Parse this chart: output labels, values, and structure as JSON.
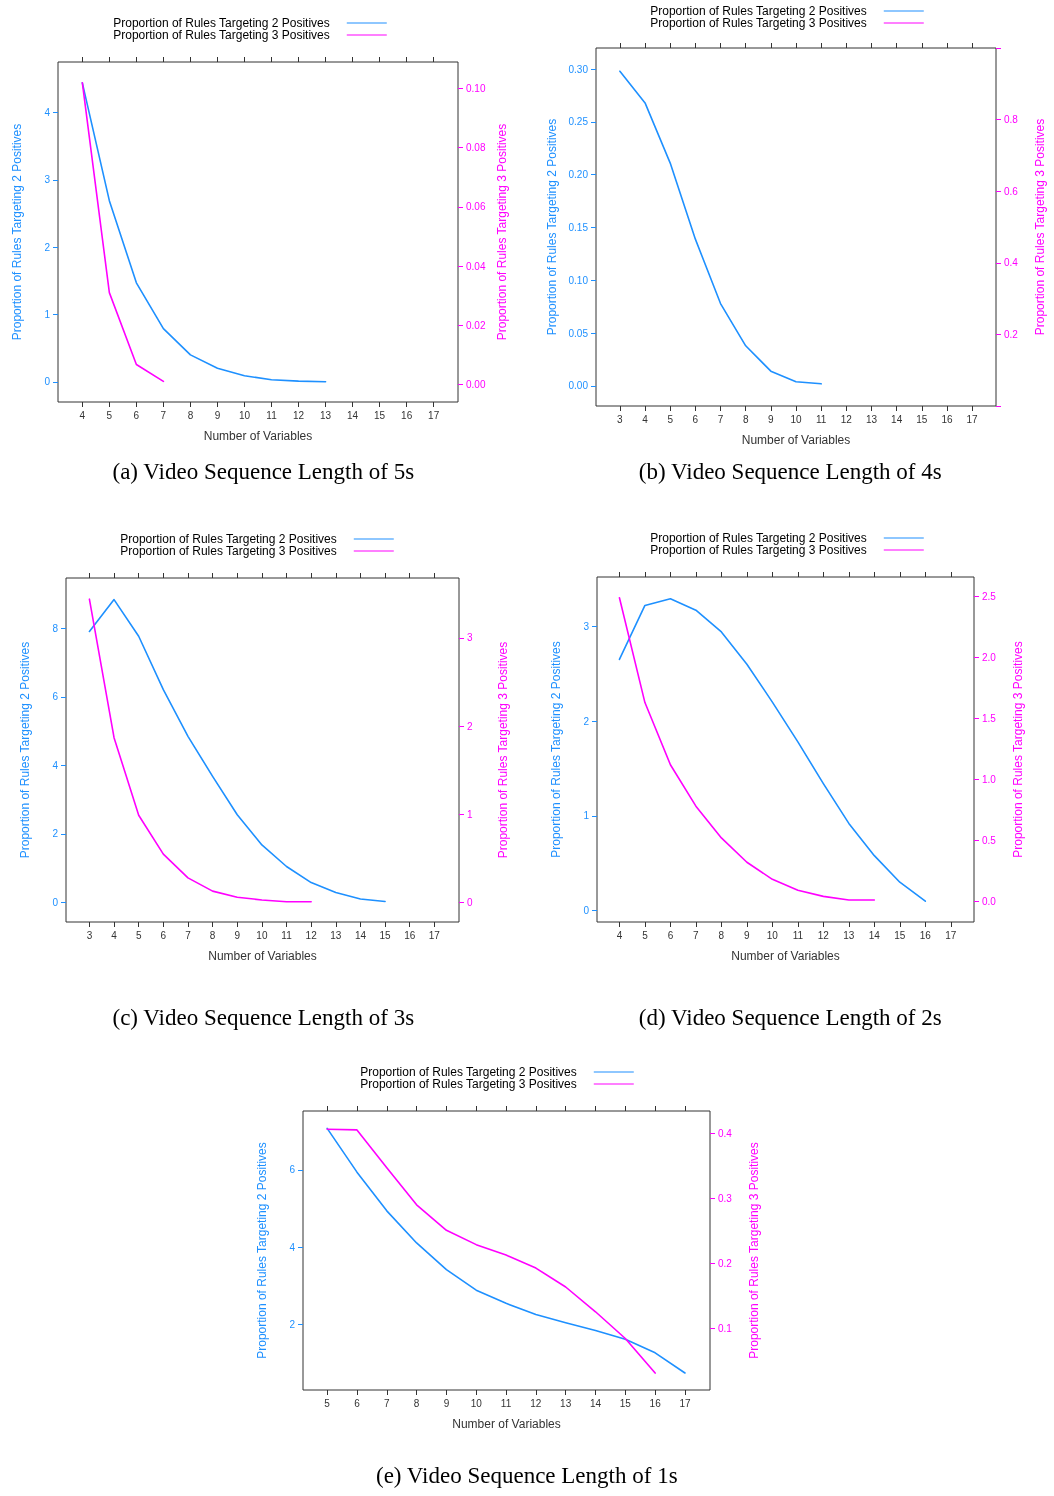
{
  "chart_data": [
    {
      "type": "line",
      "xlabel": "Number of Variables",
      "ylabel": "Proportion of Rules Targeting 2 Positives",
      "y2label": "Proportion of Rules Targeting 3 Positives",
      "annotations": [
        "(a) Video Sequence Length of 5s"
      ],
      "legend": "top",
      "grid": false,
      "x": [
        4,
        5,
        6,
        7,
        8,
        9,
        10,
        11,
        12,
        13
      ],
      "xlim": [
        3.1,
        17.9
      ],
      "xticks": [
        4,
        5,
        6,
        7,
        8,
        9,
        10,
        11,
        12,
        13,
        14,
        15,
        16,
        17
      ],
      "ylim": [
        -0.3,
        4.75
      ],
      "yticks": [
        0,
        1,
        2,
        3,
        4
      ],
      "y2lim": [
        -0.006,
        0.109
      ],
      "y2ticks": [
        {
          "value": 0,
          "label": "0.00"
        },
        {
          "value": 0.02,
          "label": "0.02"
        },
        {
          "value": 0.04,
          "label": "0.04"
        },
        {
          "value": 0.06,
          "label": "0.06"
        },
        {
          "value": 0.08,
          "label": "0.08"
        },
        {
          "value": 0.1,
          "label": "0.10"
        }
      ],
      "series": [
        {
          "name": "Proportion of Rules Targeting 2 Positives",
          "color": "#1e90ff",
          "values": [
            4.44,
            2.69,
            1.47,
            0.79,
            0.4,
            0.2,
            0.09,
            0.03,
            0.01,
            0
          ]
        },
        {
          "name": "Proportion of Rules Targeting 3 Positives",
          "color": "#ff00ff",
          "axis": "y2",
          "values": [
            0.102,
            0.031,
            0.0067,
            0.001,
            null,
            null,
            null,
            null,
            null,
            null
          ]
        }
      ]
    },
    {
      "type": "line",
      "xlabel": "Number of Variables",
      "ylabel": "Proportion of Rules Targeting 2 Positives",
      "y2label": "Proportion of Rules Targeting 3 Positives",
      "annotations": [
        "(b) Video Sequence Length of 4s"
      ],
      "legend": "top",
      "grid": false,
      "x": [
        3,
        4,
        5,
        6,
        7,
        8,
        9,
        10,
        11
      ],
      "xlim": [
        2.05,
        17.95
      ],
      "xticks": [
        3,
        4,
        5,
        6,
        7,
        8,
        9,
        10,
        11,
        12,
        13,
        14,
        15,
        16,
        17
      ],
      "ylim": [
        -0.019,
        0.32
      ],
      "yticks": [
        {
          "value": 0,
          "label": "0.00"
        },
        {
          "value": 0.05,
          "label": "0.05"
        },
        {
          "value": 0.1,
          "label": "0.10"
        },
        {
          "value": 0.15,
          "label": "0.15"
        },
        {
          "value": 0.2,
          "label": "0.20"
        },
        {
          "value": 0.25,
          "label": "0.25"
        },
        {
          "value": 0.3,
          "label": "0.30"
        }
      ],
      "y2lim": [
        0,
        1
      ],
      "y2ticks": [
        {
          "value": 0,
          "label": null
        },
        0.2,
        0.4,
        0.6,
        0.8,
        {
          "value": 1,
          "label": null
        }
      ],
      "series": [
        {
          "name": "Proportion of Rules Targeting 2 Positives",
          "color": "#1e90ff",
          "values": [
            0.298,
            0.268,
            0.211,
            0.139,
            0.078,
            0.038,
            0.014,
            0.004,
            0.002
          ]
        },
        {
          "name": "Proportion of Rules Targeting 3 Positives",
          "color": "#ff00ff",
          "axis": "y2",
          "values": [
            null,
            null,
            null,
            null,
            null,
            null,
            null,
            null,
            null
          ]
        }
      ]
    },
    {
      "type": "line",
      "xlabel": "Number of Variables",
      "ylabel": "Proportion of Rules Targeting 2 Positives",
      "y2label": "Proportion of Rules Targeting 3 Positives",
      "annotations": [
        "(c) Video Sequence Length of 3s"
      ],
      "legend": "top",
      "grid": false,
      "x": [
        3,
        4,
        5,
        6,
        7,
        8,
        9,
        10,
        11,
        12,
        13,
        14,
        15
      ],
      "xlim": [
        2.05,
        18.0
      ],
      "xticks": [
        3,
        4,
        5,
        6,
        7,
        8,
        9,
        10,
        11,
        12,
        13,
        14,
        15,
        16,
        17
      ],
      "ylim": [
        -0.57,
        9.47
      ],
      "yticks": [
        0,
        2,
        4,
        6,
        8
      ],
      "y2lim": [
        -0.22,
        3.68
      ],
      "y2ticks": [
        0,
        1,
        2,
        3
      ],
      "series": [
        {
          "name": "Proportion of Rules Targeting 2 Positives",
          "color": "#1e90ff",
          "values": [
            7.91,
            8.84,
            7.77,
            6.21,
            4.85,
            3.68,
            2.56,
            1.68,
            1.05,
            0.58,
            0.29,
            0.1,
            0.03
          ]
        },
        {
          "name": "Proportion of Rules Targeting 3 Positives",
          "color": "#ff00ff",
          "axis": "y2",
          "values": [
            3.44,
            1.87,
            0.99,
            0.55,
            0.28,
            0.13,
            0.06,
            0.03,
            0.01,
            0.01,
            null,
            null,
            null
          ]
        }
      ]
    },
    {
      "type": "line",
      "xlabel": "Number of Variables",
      "ylabel": "Proportion of Rules Targeting 2 Positives",
      "y2label": "Proportion of Rules Targeting 3 Positives",
      "annotations": [
        "(d) Video Sequence Length of 2s"
      ],
      "legend": "top",
      "grid": false,
      "x": [
        4,
        5,
        6,
        7,
        8,
        9,
        10,
        11,
        12,
        13,
        14,
        15,
        16
      ],
      "xlim": [
        3.12,
        17.91
      ],
      "xticks": [
        4,
        5,
        6,
        7,
        8,
        9,
        10,
        11,
        12,
        13,
        14,
        15,
        16,
        17
      ],
      "ylim": [
        -0.12,
        3.52
      ],
      "yticks": [
        0,
        1,
        2,
        3
      ],
      "y2lim": [
        -0.17,
        2.66
      ],
      "y2ticks": [
        {
          "value": 0,
          "label": "0.0"
        },
        0.5,
        {
          "value": 1,
          "label": "1.0"
        },
        1.5,
        {
          "value": 2,
          "label": "2.0"
        },
        2.5
      ],
      "series": [
        {
          "name": "Proportion of Rules Targeting 2 Positives",
          "color": "#1e90ff",
          "values": [
            2.65,
            3.22,
            3.29,
            3.17,
            2.94,
            2.6,
            2.2,
            1.78,
            1.34,
            0.92,
            0.58,
            0.3,
            0.1
          ]
        },
        {
          "name": "Proportion of Rules Targeting 3 Positives",
          "color": "#ff00ff",
          "axis": "y2",
          "values": [
            2.49,
            1.63,
            1.12,
            0.78,
            0.52,
            0.32,
            0.18,
            0.09,
            0.04,
            0.01,
            0.01,
            null,
            null
          ]
        }
      ]
    },
    {
      "type": "line",
      "xlabel": "Number of Variables",
      "ylabel": "Proportion of Rules Targeting 2 Positives",
      "y2label": "Proportion of Rules Targeting 3 Positives",
      "annotations": [
        "(e) Video Sequence Length of 1s"
      ],
      "legend": "top",
      "grid": false,
      "x": [
        5,
        6,
        7,
        8,
        9,
        10,
        11,
        12,
        13,
        14,
        15,
        16,
        17
      ],
      "xlim": [
        4.19,
        17.84
      ],
      "xticks": [
        5,
        6,
        7,
        8,
        9,
        10,
        11,
        12,
        13,
        14,
        15,
        16,
        17
      ],
      "ylim": [
        0.31,
        7.52
      ],
      "yticks": [
        2,
        4,
        6
      ],
      "y2lim": [
        0.006,
        0.434
      ],
      "y2ticks": [
        0.1,
        0.2,
        0.3,
        0.4
      ],
      "series": [
        {
          "name": "Proportion of Rules Targeting 2 Positives",
          "color": "#1e90ff",
          "values": [
            7.07,
            5.94,
            4.94,
            4.11,
            3.42,
            2.89,
            2.55,
            2.26,
            2.05,
            1.85,
            1.62,
            1.27,
            0.75
          ]
        },
        {
          "name": "Proportion of Rules Targeting 3 Positives",
          "color": "#ff00ff",
          "axis": "y2",
          "values": [
            0.406,
            0.405,
            0.347,
            0.29,
            0.251,
            0.229,
            0.213,
            0.193,
            0.164,
            0.126,
            0.085,
            0.032,
            null
          ]
        }
      ]
    }
  ]
}
